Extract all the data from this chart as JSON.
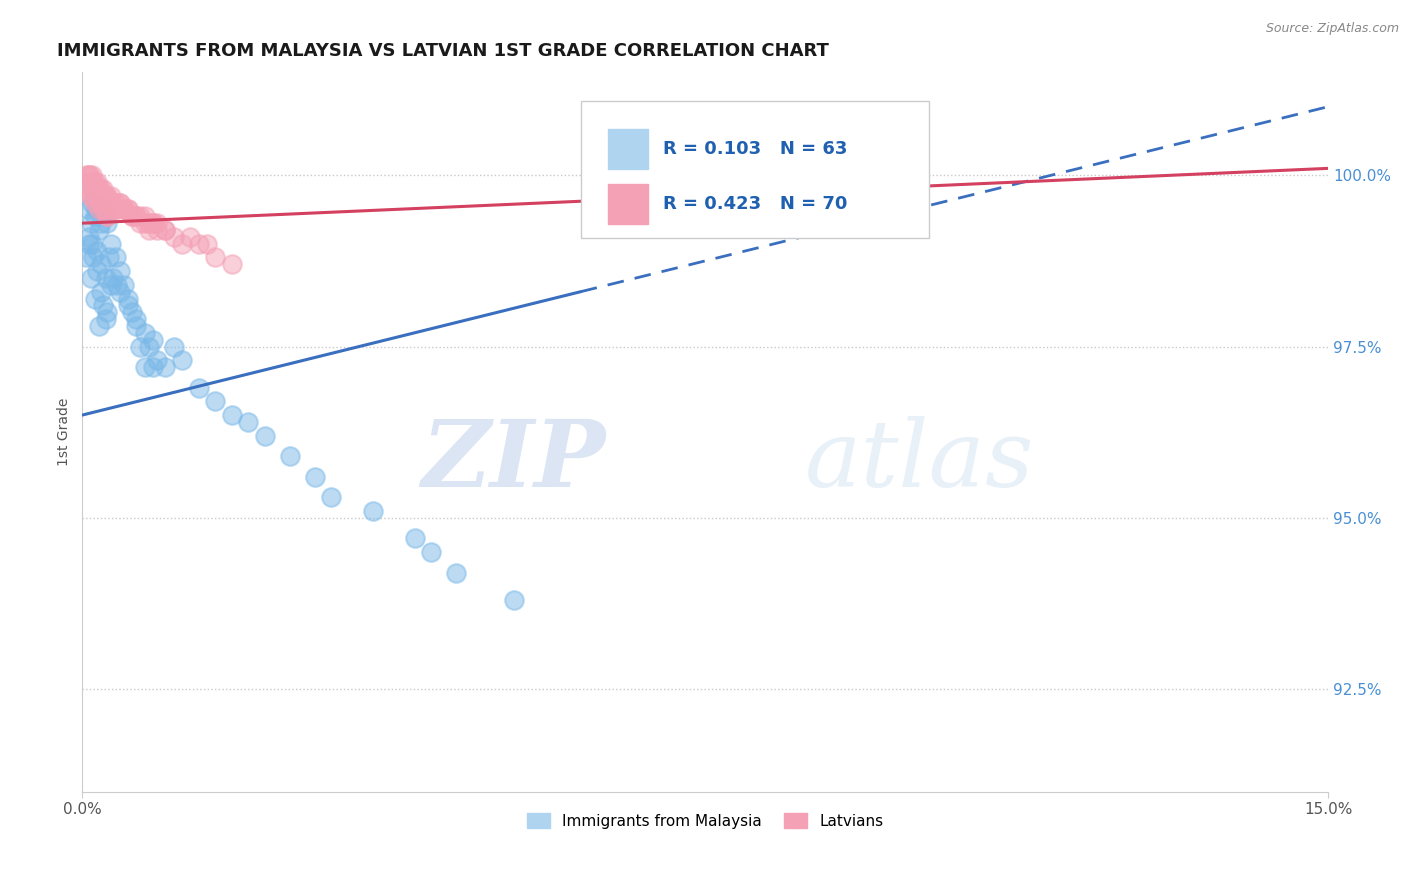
{
  "title": "IMMIGRANTS FROM MALAYSIA VS LATVIAN 1ST GRADE CORRELATION CHART",
  "source_text": "Source: ZipAtlas.com",
  "ylabel": "1st Grade",
  "xlim": [
    0.0,
    15.0
  ],
  "ylim": [
    91.0,
    101.5
  ],
  "yticks": [
    92.5,
    95.0,
    97.5,
    100.0
  ],
  "ytick_labels": [
    "92.5%",
    "95.0%",
    "97.5%",
    "100.0%"
  ],
  "xticks": [
    0.0,
    15.0
  ],
  "xtick_labels": [
    "0.0%",
    "15.0%"
  ],
  "R_blue": 0.103,
  "N_blue": 63,
  "R_pink": 0.423,
  "N_pink": 70,
  "blue_color": "#7ab8e8",
  "pink_color": "#f4a0b5",
  "blue_line_color": "#3a6fbf",
  "pink_line_color": "#d44060",
  "background_color": "#ffffff",
  "grid_color": "#c8c8c8",
  "watermark_zip": "ZIP",
  "watermark_atlas": "atlas",
  "blue_line_x0": 0.0,
  "blue_line_y0": 96.5,
  "blue_line_x1": 6.0,
  "blue_line_y1": 98.3,
  "blue_dash_x0": 6.0,
  "blue_dash_y0": 98.3,
  "blue_dash_x1": 15.0,
  "blue_dash_y1": 101.0,
  "pink_line_x0": 0.0,
  "pink_line_y0": 99.3,
  "pink_line_x1": 15.0,
  "pink_line_y1": 100.1,
  "blue_x": [
    0.05,
    0.07,
    0.08,
    0.1,
    0.1,
    0.12,
    0.13,
    0.15,
    0.15,
    0.17,
    0.18,
    0.2,
    0.2,
    0.22,
    0.22,
    0.25,
    0.25,
    0.27,
    0.28,
    0.3,
    0.3,
    0.32,
    0.35,
    0.37,
    0.4,
    0.42,
    0.45,
    0.5,
    0.55,
    0.6,
    0.65,
    0.7,
    0.75,
    0.8,
    0.85,
    0.9,
    1.0,
    1.1,
    1.2,
    1.4,
    1.6,
    1.8,
    2.0,
    2.2,
    2.5,
    2.8,
    3.0,
    3.5,
    4.0,
    4.2,
    4.5,
    5.2,
    0.08,
    0.12,
    0.18,
    0.22,
    0.28,
    0.35,
    0.45,
    0.55,
    0.65,
    0.75,
    0.85
  ],
  "blue_y": [
    98.8,
    99.5,
    99.0,
    99.3,
    98.5,
    99.6,
    98.8,
    99.4,
    98.2,
    99.5,
    98.6,
    99.2,
    97.8,
    99.3,
    98.3,
    99.5,
    98.1,
    99.4,
    97.9,
    99.3,
    98.0,
    98.8,
    99.0,
    98.5,
    98.8,
    98.4,
    98.6,
    98.4,
    98.2,
    98.0,
    97.8,
    97.5,
    97.2,
    97.5,
    97.2,
    97.3,
    97.2,
    97.5,
    97.3,
    96.9,
    96.7,
    96.5,
    96.4,
    96.2,
    95.9,
    95.6,
    95.3,
    95.1,
    94.7,
    94.5,
    94.2,
    93.8,
    99.1,
    99.0,
    98.9,
    98.7,
    98.5,
    98.4,
    98.3,
    98.1,
    97.9,
    97.7,
    97.6
  ],
  "pink_x": [
    0.05,
    0.07,
    0.08,
    0.1,
    0.1,
    0.12,
    0.13,
    0.15,
    0.15,
    0.17,
    0.18,
    0.2,
    0.2,
    0.22,
    0.22,
    0.25,
    0.25,
    0.27,
    0.28,
    0.3,
    0.3,
    0.32,
    0.35,
    0.37,
    0.4,
    0.42,
    0.45,
    0.5,
    0.55,
    0.6,
    0.65,
    0.7,
    0.75,
    0.8,
    0.85,
    0.9,
    1.0,
    1.1,
    1.2,
    1.4,
    1.6,
    1.8,
    0.08,
    0.12,
    0.18,
    0.22,
    0.28,
    0.35,
    0.45,
    0.55,
    0.65,
    0.75,
    0.85,
    0.5,
    0.6,
    0.7,
    0.8,
    0.9,
    1.0,
    0.3,
    0.4,
    0.2,
    0.1,
    1.3,
    1.5,
    0.07,
    0.13,
    0.17,
    0.23,
    0.27
  ],
  "pink_y": [
    100.0,
    99.8,
    100.0,
    99.9,
    99.7,
    100.0,
    99.8,
    99.9,
    99.6,
    99.8,
    99.7,
    99.8,
    99.5,
    99.7,
    99.6,
    99.8,
    99.5,
    99.7,
    99.5,
    99.7,
    99.4,
    99.6,
    99.7,
    99.5,
    99.6,
    99.5,
    99.6,
    99.5,
    99.5,
    99.4,
    99.4,
    99.3,
    99.3,
    99.2,
    99.3,
    99.2,
    99.2,
    99.1,
    99.0,
    99.0,
    98.8,
    98.7,
    100.0,
    99.9,
    99.9,
    99.8,
    99.7,
    99.6,
    99.6,
    99.5,
    99.4,
    99.4,
    99.3,
    99.5,
    99.4,
    99.4,
    99.3,
    99.3,
    99.2,
    99.4,
    99.5,
    99.6,
    99.7,
    99.1,
    99.0,
    99.9,
    99.8,
    99.8,
    99.7,
    99.6
  ]
}
